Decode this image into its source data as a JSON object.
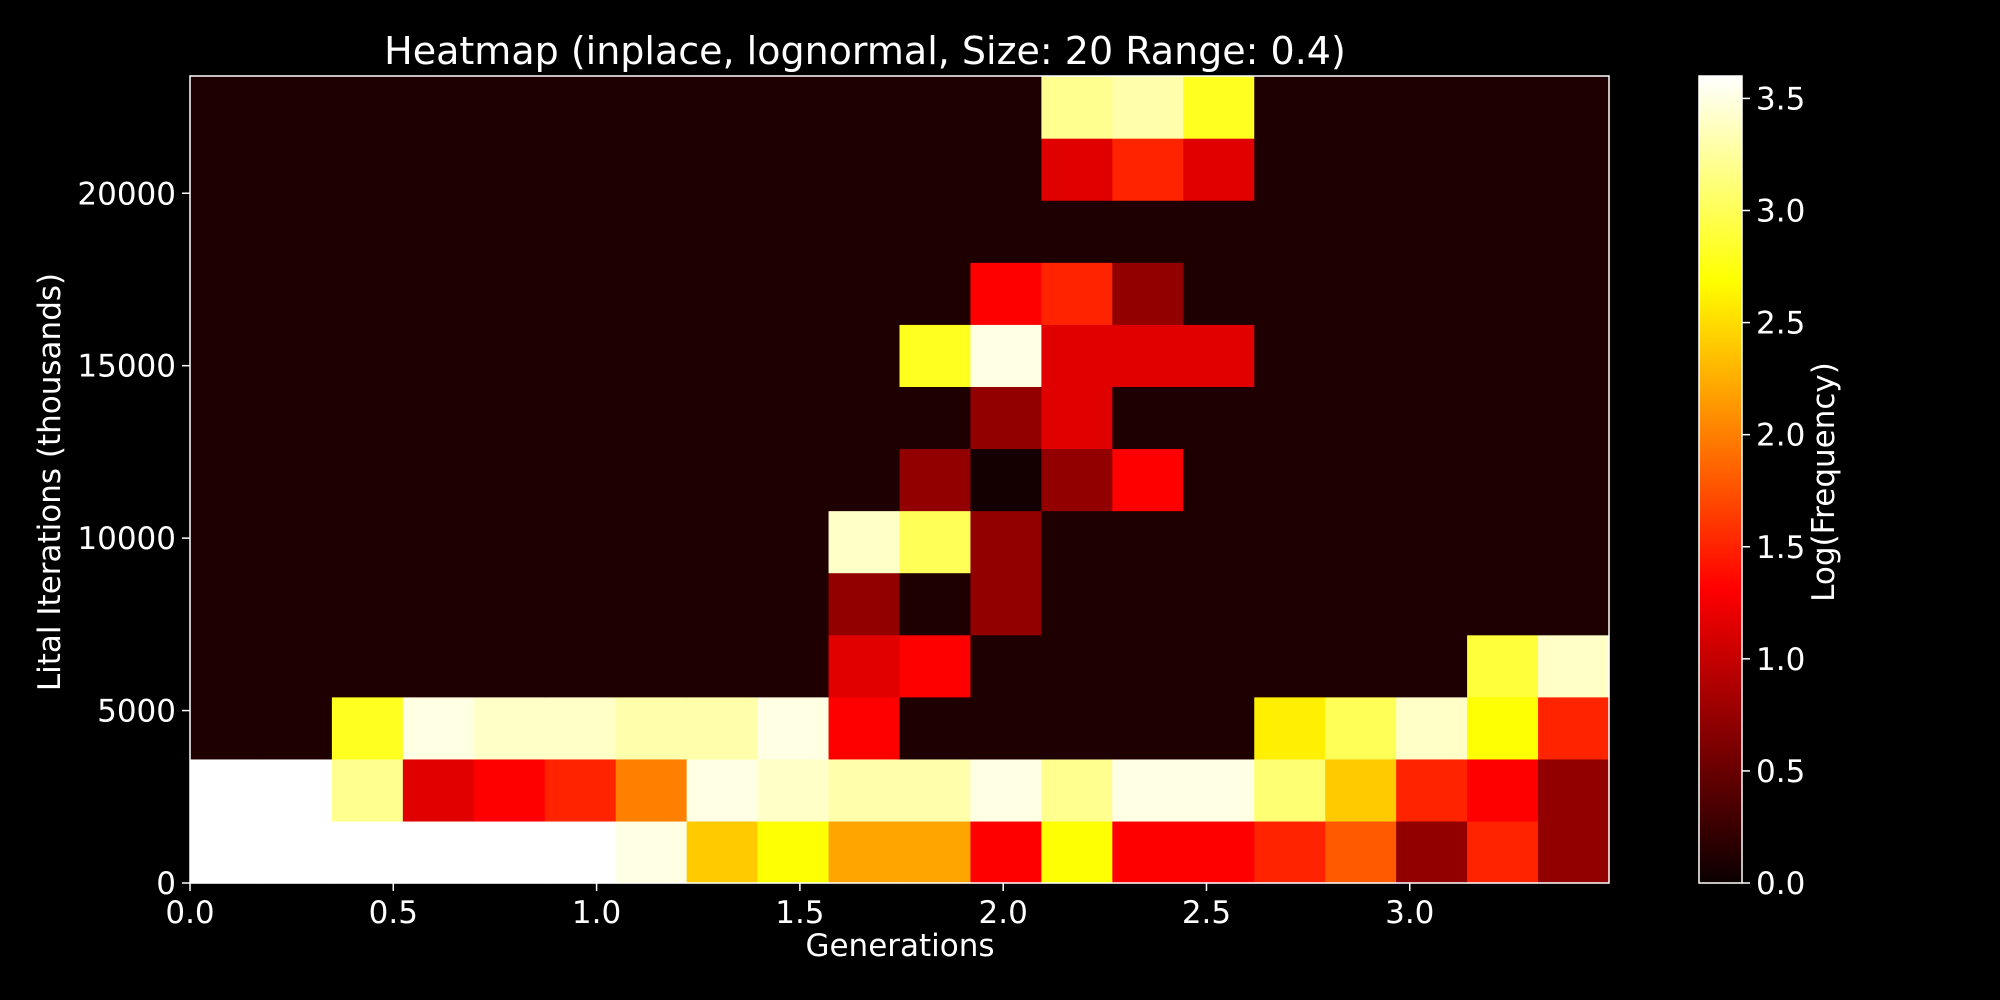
{
  "chart_data": {
    "type": "heatmap",
    "title": "Heatmap (inplace, lognormal, Size: 20 Range: 0.4)",
    "xlabel": "Generations",
    "ylabel": "Lital Iterations (thousands)",
    "colorbar_label": "Log(Frequency)",
    "colormap": "hot",
    "x_edges": [
      0.0,
      0.1745,
      0.349,
      0.5235,
      0.698,
      0.8725,
      1.047,
      1.2215,
      1.396,
      1.5705,
      1.745,
      1.9195,
      2.094,
      2.2685,
      2.443,
      2.6175,
      2.792,
      2.9665,
      3.141,
      3.3155,
      3.49
    ],
    "y_edges": [
      0,
      1800,
      3600,
      5400,
      7200,
      9000,
      10800,
      12600,
      14400,
      16200,
      18000,
      19800,
      21600,
      23400
    ],
    "values": [
      [
        3.6,
        3.6,
        3.6,
        3.6,
        3.6,
        3.6,
        3.5,
        2.4,
        2.7,
        2.2,
        2.2,
        1.3,
        2.7,
        1.3,
        1.3,
        1.5,
        1.8,
        0.7,
        1.5,
        0.7
      ],
      [
        3.6,
        3.6,
        3.2,
        1.1,
        1.3,
        1.5,
        2.0,
        3.5,
        3.4,
        3.3,
        3.3,
        3.5,
        3.2,
        3.5,
        3.5,
        3.1,
        2.4,
        1.5,
        1.3,
        0.7
      ],
      [
        0.1,
        0.1,
        2.8,
        3.5,
        3.4,
        3.4,
        3.3,
        3.3,
        3.5,
        1.3,
        0.1,
        0.1,
        0.1,
        0.1,
        0.1,
        2.6,
        3.0,
        3.4,
        2.7,
        1.5
      ],
      [
        0.1,
        0.1,
        0.1,
        0.1,
        0.1,
        0.1,
        0.1,
        0.1,
        0.1,
        1.1,
        1.3,
        0.1,
        0.1,
        0.1,
        0.1,
        0.1,
        0.1,
        0.1,
        2.9,
        3.4
      ],
      [
        0.1,
        0.1,
        0.1,
        0.1,
        0.1,
        0.1,
        0.1,
        0.1,
        0.1,
        0.7,
        0.1,
        0.7,
        0.1,
        0.1,
        0.1,
        0.1,
        0.1,
        0.1,
        0.1,
        0.1
      ],
      [
        0.1,
        0.1,
        0.1,
        0.1,
        0.1,
        0.1,
        0.1,
        0.1,
        0.1,
        3.4,
        3.0,
        0.7,
        0.1,
        0.1,
        0.1,
        0.1,
        0.1,
        0.1,
        0.1,
        0.1
      ],
      [
        0.1,
        0.1,
        0.1,
        0.1,
        0.1,
        0.1,
        0.1,
        0.1,
        0.1,
        0.1,
        0.7,
        0.05,
        0.7,
        1.3,
        0.1,
        0.1,
        0.1,
        0.1,
        0.1,
        0.1
      ],
      [
        0.1,
        0.1,
        0.1,
        0.1,
        0.1,
        0.1,
        0.1,
        0.1,
        0.1,
        0.1,
        0.1,
        0.7,
        1.1,
        0.1,
        0.1,
        0.1,
        0.1,
        0.1,
        0.1,
        0.1
      ],
      [
        0.1,
        0.1,
        0.1,
        0.1,
        0.1,
        0.1,
        0.1,
        0.1,
        0.1,
        0.1,
        2.8,
        3.5,
        1.1,
        1.1,
        1.1,
        0.1,
        0.1,
        0.1,
        0.1,
        0.1
      ],
      [
        0.1,
        0.1,
        0.1,
        0.1,
        0.1,
        0.1,
        0.1,
        0.1,
        0.1,
        0.1,
        0.1,
        1.3,
        1.5,
        0.7,
        0.1,
        0.1,
        0.1,
        0.1,
        0.1,
        0.1
      ],
      [
        0.1,
        0.1,
        0.1,
        0.1,
        0.1,
        0.1,
        0.1,
        0.1,
        0.1,
        0.1,
        0.1,
        0.1,
        0.1,
        0.1,
        0.1,
        0.1,
        0.1,
        0.1,
        0.1,
        0.1
      ],
      [
        0.1,
        0.1,
        0.1,
        0.1,
        0.1,
        0.1,
        0.1,
        0.1,
        0.1,
        0.1,
        0.1,
        0.1,
        1.1,
        1.5,
        1.1,
        0.1,
        0.1,
        0.1,
        0.1,
        0.1
      ],
      [
        0.1,
        0.1,
        0.1,
        0.1,
        0.1,
        0.1,
        0.1,
        0.1,
        0.1,
        0.1,
        0.1,
        0.1,
        3.2,
        3.3,
        2.8,
        0.1,
        0.1,
        0.1,
        0.1,
        0.1
      ]
    ],
    "xlim": [
      0.0,
      3.49
    ],
    "ylim": [
      0,
      23400
    ],
    "clim": [
      0.0,
      3.6
    ],
    "x_ticks": [
      0.0,
      0.5,
      1.0,
      1.5,
      2.0,
      2.5,
      3.0
    ],
    "x_tick_labels": [
      "0.0",
      "0.5",
      "1.0",
      "1.5",
      "2.0",
      "2.5",
      "3.0"
    ],
    "y_ticks": [
      0,
      5000,
      10000,
      15000,
      20000
    ],
    "y_tick_labels": [
      "0",
      "5000",
      "10000",
      "15000",
      "20000"
    ],
    "cbar_ticks": [
      0.0,
      0.5,
      1.0,
      1.5,
      2.0,
      2.5,
      3.0,
      3.5
    ],
    "cbar_tick_labels": [
      "0.0",
      "0.5",
      "1.0",
      "1.5",
      "2.0",
      "2.5",
      "3.0",
      "3.5"
    ],
    "grid": false,
    "background": "#000000",
    "foreground": "#ffffff"
  }
}
